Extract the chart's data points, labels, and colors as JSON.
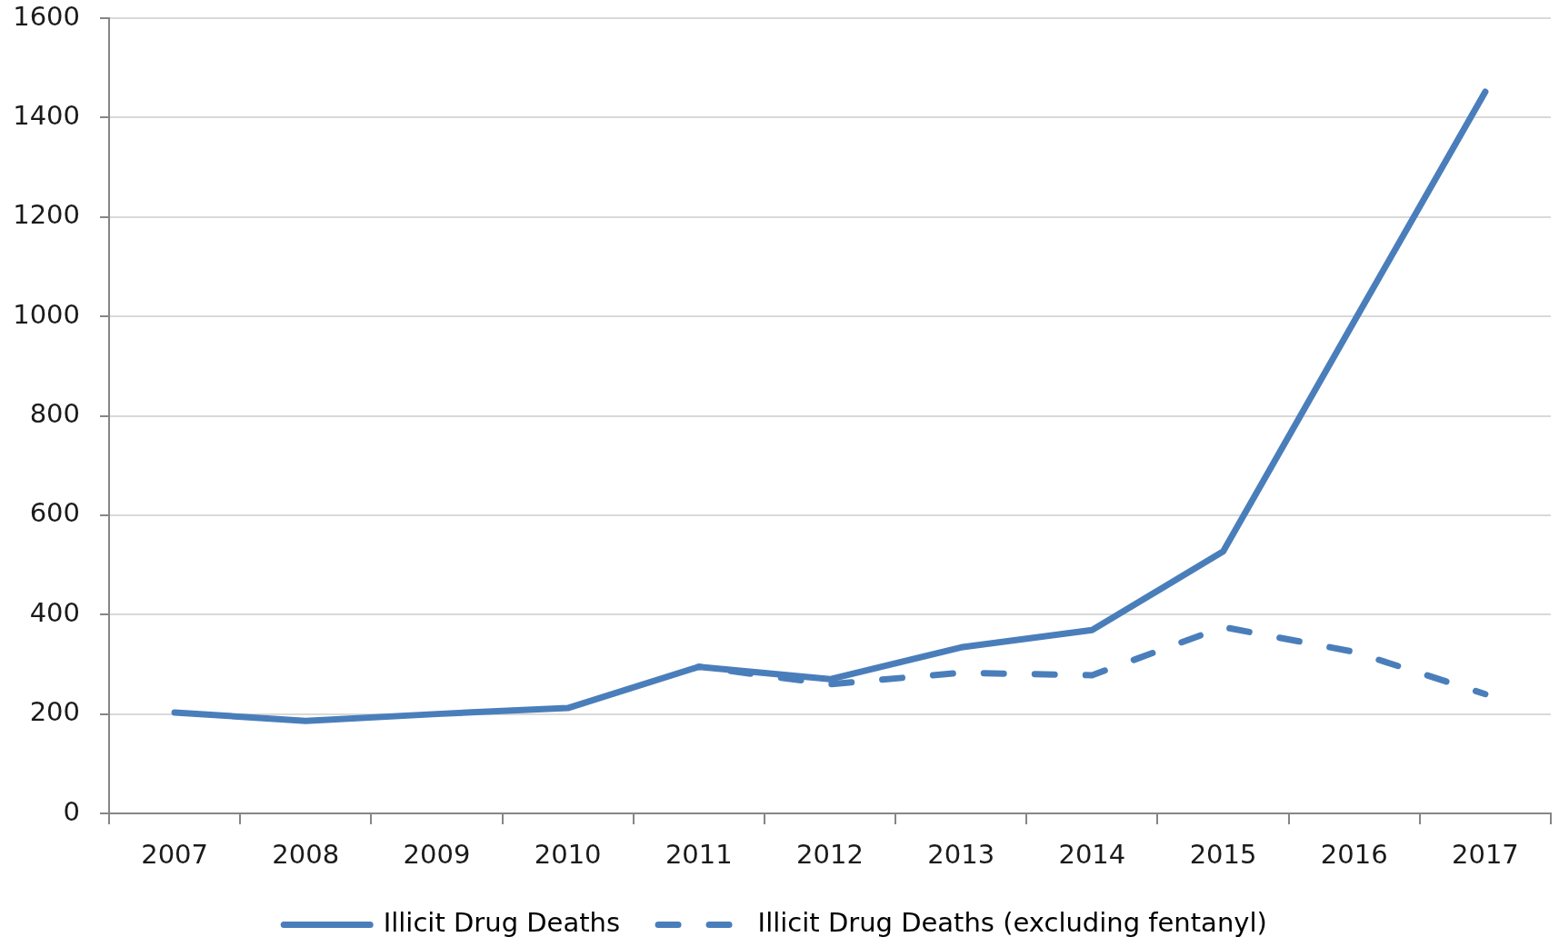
{
  "chart_data": {
    "type": "line",
    "categories": [
      "2007",
      "2008",
      "2009",
      "2010",
      "2011",
      "2012",
      "2013",
      "2014",
      "2015",
      "2016",
      "2017"
    ],
    "series": [
      {
        "name": "Illicit Drug Deaths",
        "color": "#4a7ebb",
        "line_style": "solid",
        "values": [
          203,
          186,
          200,
          212,
          295,
          270,
          334,
          369,
          527,
          990,
          1452
        ]
      },
      {
        "name": "Illicit Drug Deaths (excluding fentanyl)",
        "color": "#4a7ebb",
        "line_style": "dashed",
        "values": [
          null,
          null,
          null,
          null,
          295,
          260,
          283,
          278,
          375,
          325,
          240
        ]
      }
    ],
    "ylim": [
      0,
      1600
    ],
    "yticks": [
      0,
      200,
      400,
      600,
      800,
      1000,
      1200,
      1400,
      1600
    ],
    "grid": "y",
    "legend": "bottom"
  }
}
